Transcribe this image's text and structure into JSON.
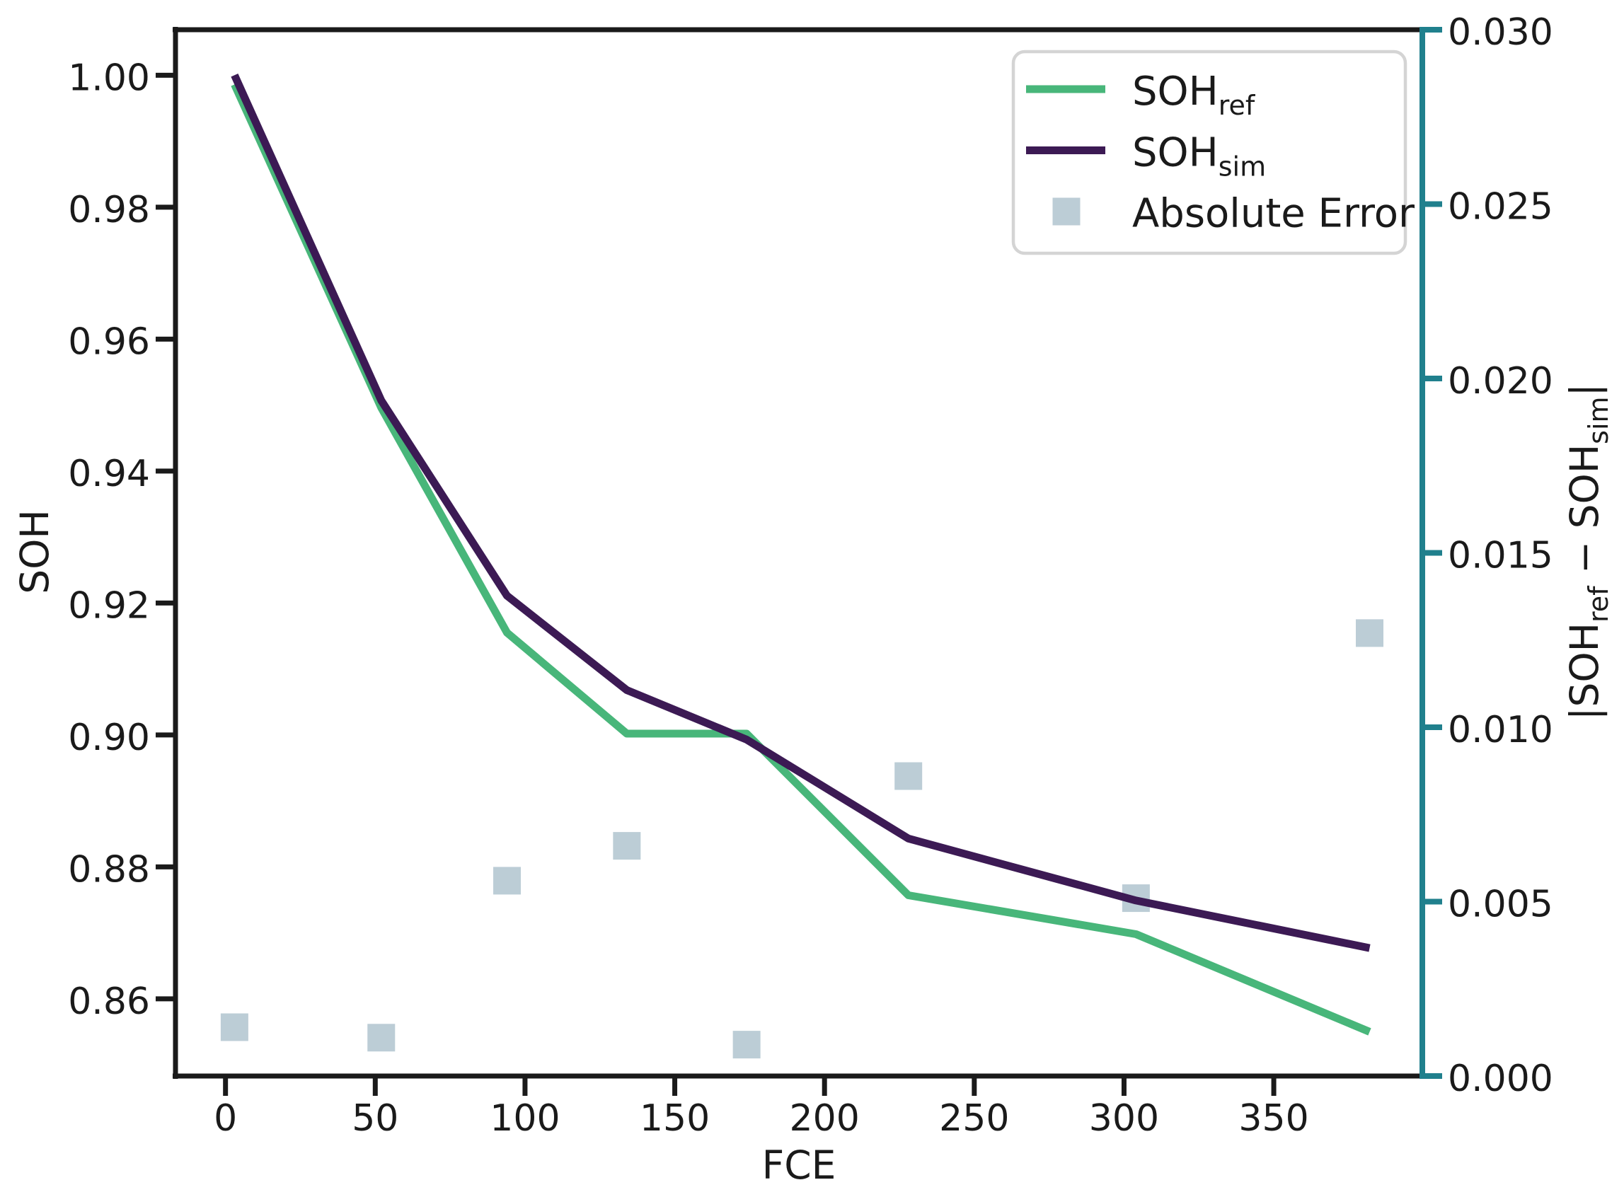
{
  "chart_data": {
    "type": "line+scatter",
    "title": "",
    "xlabel": "FCE",
    "ylabel_left": "SOH",
    "ylabel_right_parts": {
      "p1": "|SOH",
      "sub1": "ref",
      "p2": " − SOH",
      "sub2": "sim",
      "p3": "|"
    },
    "x": [
      3,
      52,
      94,
      134,
      174,
      228,
      304,
      382
    ],
    "series": [
      {
        "name": "SOH_ref",
        "type": "line",
        "axis": "left",
        "color": "#48b67a",
        "values": [
          0.9986,
          0.9496,
          0.9155,
          0.9002,
          0.9002,
          0.8757,
          0.8698,
          0.855
        ]
      },
      {
        "name": "SOH_sim",
        "type": "line",
        "axis": "left",
        "color": "#3c1a54",
        "values": [
          1.0,
          0.9507,
          0.9211,
          0.9068,
          0.8993,
          0.8843,
          0.8749,
          0.8677
        ]
      },
      {
        "name": "Absolute Error",
        "type": "scatter",
        "axis": "right",
        "color": "#bccdd6",
        "values": [
          0.0014,
          0.0011,
          0.0056,
          0.0066,
          0.0009,
          0.0086,
          0.0051,
          0.0127
        ]
      }
    ],
    "x_ticks": [
      0,
      50,
      100,
      150,
      200,
      250,
      300,
      350
    ],
    "y_ticks_left": [
      "0.86",
      "0.88",
      "0.90",
      "0.92",
      "0.94",
      "0.96",
      "0.98",
      "1.00"
    ],
    "y_ticks_right": [
      "0.000",
      "0.005",
      "0.010",
      "0.015",
      "0.020",
      "0.025",
      "0.030"
    ],
    "xlim": [
      -16.7,
      399.6
    ],
    "ylim_left": [
      0.8483,
      1.0069
    ],
    "ylim_right": [
      0.0,
      0.03
    ],
    "grid": false,
    "legend": {
      "position": "upper right",
      "items": [
        {
          "main": "SOH",
          "sub": "ref"
        },
        {
          "main": "SOH",
          "sub": "sim"
        },
        {
          "main": "Absolute Error",
          "sub": ""
        }
      ]
    },
    "colors": {
      "axis_left": "#1a1a1a",
      "axis_right": "#20808d",
      "legend_border": "#d4d4d4",
      "background": "#ffffff"
    }
  }
}
